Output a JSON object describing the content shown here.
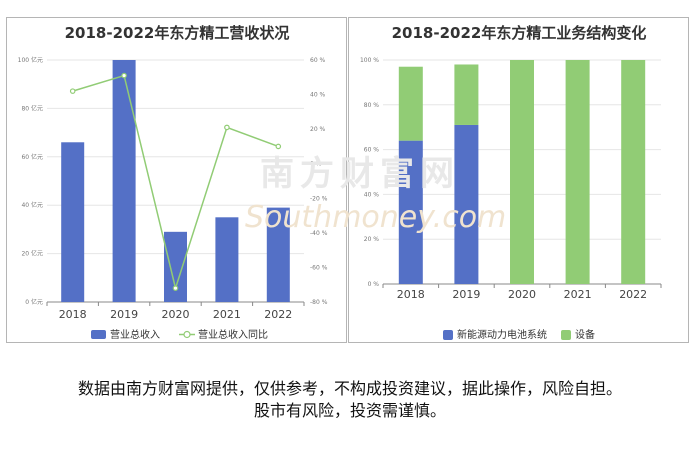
{
  "chart_data": [
    {
      "type": "bar+line",
      "title": "2018-2022年东方精工营收状况",
      "categories": [
        "2018",
        "2019",
        "2020",
        "2021",
        "2022"
      ],
      "series": [
        {
          "name": "营业总收入",
          "type": "bar",
          "axis": "left",
          "color": "#5470c6",
          "values": [
            66,
            100,
            29,
            35,
            39
          ]
        },
        {
          "name": "营业总收入同比",
          "type": "line",
          "axis": "right",
          "color": "#91cc75",
          "values": [
            42,
            51,
            -72,
            21,
            10
          ]
        }
      ],
      "y_left": {
        "min": 0,
        "max": 100,
        "ticks": [
          "0 亿元",
          "20 亿元",
          "40 亿元",
          "60 亿元",
          "80 亿元",
          "100 亿元"
        ]
      },
      "y_right": {
        "min": -80,
        "max": 60,
        "ticks": [
          "-80 %",
          "-60 %",
          "-40 %",
          "-20 %",
          "0 %",
          "20 %",
          "40 %",
          "60 %"
        ]
      },
      "legend_position": "bottom",
      "grid": true
    },
    {
      "type": "stacked-bar",
      "title": "2018-2022年东方精工业务结构变化",
      "categories": [
        "2018",
        "2019",
        "2020",
        "2021",
        "2022"
      ],
      "series": [
        {
          "name": "新能源动力电池系统",
          "color": "#5470c6",
          "values": [
            64,
            71,
            0,
            0,
            0
          ]
        },
        {
          "name": "设备",
          "color": "#91cc75",
          "values": [
            33,
            27,
            100,
            100,
            100
          ]
        }
      ],
      "y": {
        "min": 0,
        "max": 100,
        "ticks": [
          "0 %",
          "20 %",
          "40 %",
          "60 %",
          "80 %",
          "100 %"
        ]
      },
      "legend_position": "bottom",
      "grid": true
    }
  ],
  "watermark": {
    "line1": "南方财富网",
    "line2": "Southmoney.com"
  },
  "disclaimer": {
    "line1": "数据由南方财富网提供，仅供参考，不构成投资建议，据此操作，风险自担。",
    "line2": "股市有风险，投资需谨慎。"
  }
}
